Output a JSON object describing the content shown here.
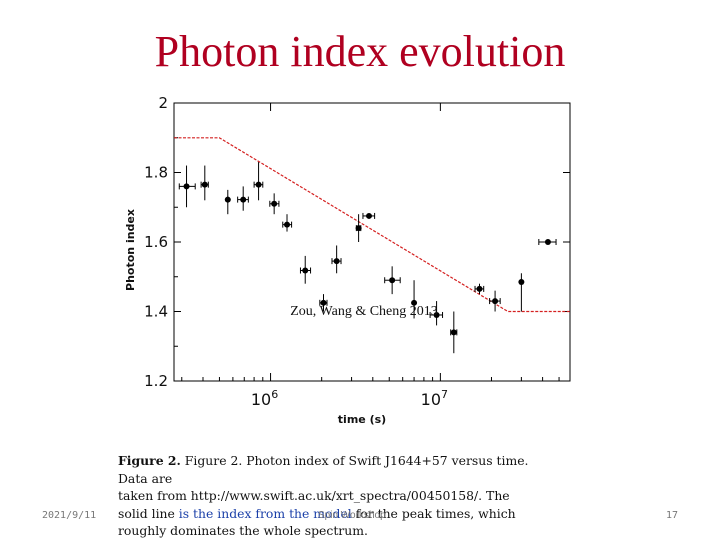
{
  "slide": {
    "title": "Photon index evolution",
    "footer_date": "2021/9/11",
    "footer_center": "Spin Workshop",
    "page_number": "17"
  },
  "figure": {
    "annotation": "Zou, Wang & Cheng 2013",
    "caption_line1": "Figure 2. Photon index of Swift J1644+57 versus time. Data are",
    "caption_line2": "taken from http://www.swift.ac.uk/xrt_spectra/00450158/. The",
    "caption_line3_a": "solid line ",
    "caption_line3_b": "is the index from the model",
    "caption_line3_c": " for the peak times, which",
    "caption_line4": "roughly dominates the whole spectrum."
  },
  "chart_data": {
    "type": "scatter",
    "xlabel": "time (s)",
    "ylabel": "Photon index",
    "x_scale": "log",
    "xlim": [
      270000,
      58000000
    ],
    "ylim": [
      1.2,
      2.0
    ],
    "x_ticks": [
      {
        "value": 1000000,
        "base": "10",
        "exp": "6"
      },
      {
        "value": 10000000,
        "base": "10",
        "exp": "7"
      }
    ],
    "y_ticks": [
      1.2,
      1.4,
      1.6,
      1.8,
      2.0
    ],
    "y_tick_labels": [
      "1.2",
      "1.4",
      "1.6",
      "1.8",
      "2"
    ],
    "line_color": "#d42020",
    "point_color": "#000000",
    "points": [
      {
        "x": 320000,
        "y": 1.76,
        "xerr": [
          290000,
          360000
        ],
        "yerr": [
          1.7,
          1.82
        ]
      },
      {
        "x": 410000,
        "y": 1.765,
        "xerr": [
          390000,
          430000
        ],
        "yerr": [
          1.72,
          1.82
        ]
      },
      {
        "x": 560000,
        "y": 1.722,
        "xerr": [
          560000,
          560000
        ],
        "yerr": [
          1.68,
          1.75
        ]
      },
      {
        "x": 690000,
        "y": 1.722,
        "xerr": [
          640000,
          740000
        ],
        "yerr": [
          1.69,
          1.76
        ]
      },
      {
        "x": 850000,
        "y": 1.765,
        "xerr": [
          800000,
          900000
        ],
        "yerr": [
          1.72,
          1.83
        ]
      },
      {
        "x": 1050000,
        "y": 1.71,
        "xerr": [
          990000,
          1120000
        ],
        "yerr": [
          1.68,
          1.74
        ]
      },
      {
        "x": 1250000,
        "y": 1.65,
        "xerr": [
          1180000,
          1330000
        ],
        "yerr": [
          1.63,
          1.68
        ]
      },
      {
        "x": 1600000,
        "y": 1.518,
        "xerr": [
          1500000,
          1720000
        ],
        "yerr": [
          1.48,
          1.56
        ]
      },
      {
        "x": 2050000,
        "y": 1.425,
        "xerr": [
          1950000,
          2150000
        ],
        "yerr": [
          1.4,
          1.45
        ]
      },
      {
        "x": 2450000,
        "y": 1.545,
        "xerr": [
          2300000,
          2600000
        ],
        "yerr": [
          1.51,
          1.59
        ]
      },
      {
        "x": 3300000,
        "y": 1.64,
        "xerr": [
          3200000,
          3400000
        ],
        "yerr": [
          1.6,
          1.68
        ]
      },
      {
        "x": 3800000,
        "y": 1.675,
        "xerr": [
          3500000,
          4100000
        ],
        "yerr": [
          1.67,
          1.68
        ]
      },
      {
        "x": 5200000,
        "y": 1.49,
        "xerr": [
          4700000,
          5800000
        ],
        "yerr": [
          1.45,
          1.53
        ]
      },
      {
        "x": 7000000,
        "y": 1.425,
        "xerr": [
          7000000,
          7000000
        ],
        "yerr": [
          1.38,
          1.49
        ]
      },
      {
        "x": 9500000,
        "y": 1.39,
        "xerr": [
          8700000,
          10300000
        ],
        "yerr": [
          1.36,
          1.43
        ]
      },
      {
        "x": 12000000,
        "y": 1.34,
        "xerr": [
          11500000,
          12500000
        ],
        "yerr": [
          1.28,
          1.4
        ]
      },
      {
        "x": 17000000,
        "y": 1.465,
        "xerr": [
          16000000,
          18000000
        ],
        "yerr": [
          1.45,
          1.48
        ]
      },
      {
        "x": 21000000,
        "y": 1.43,
        "xerr": [
          19500000,
          22500000
        ],
        "yerr": [
          1.4,
          1.46
        ]
      },
      {
        "x": 30000000,
        "y": 1.485,
        "xerr": [
          30000000,
          30000000
        ],
        "yerr": [
          1.4,
          1.51
        ]
      },
      {
        "x": 43000000,
        "y": 1.6,
        "xerr": [
          38000000,
          48000000
        ],
        "yerr": [
          1.6,
          1.6
        ]
      }
    ],
    "model_line": [
      {
        "x": 270000,
        "y": 1.9
      },
      {
        "x": 500000,
        "y": 1.9
      },
      {
        "x": 25000000,
        "y": 1.4
      },
      {
        "x": 58000000,
        "y": 1.4
      }
    ]
  }
}
